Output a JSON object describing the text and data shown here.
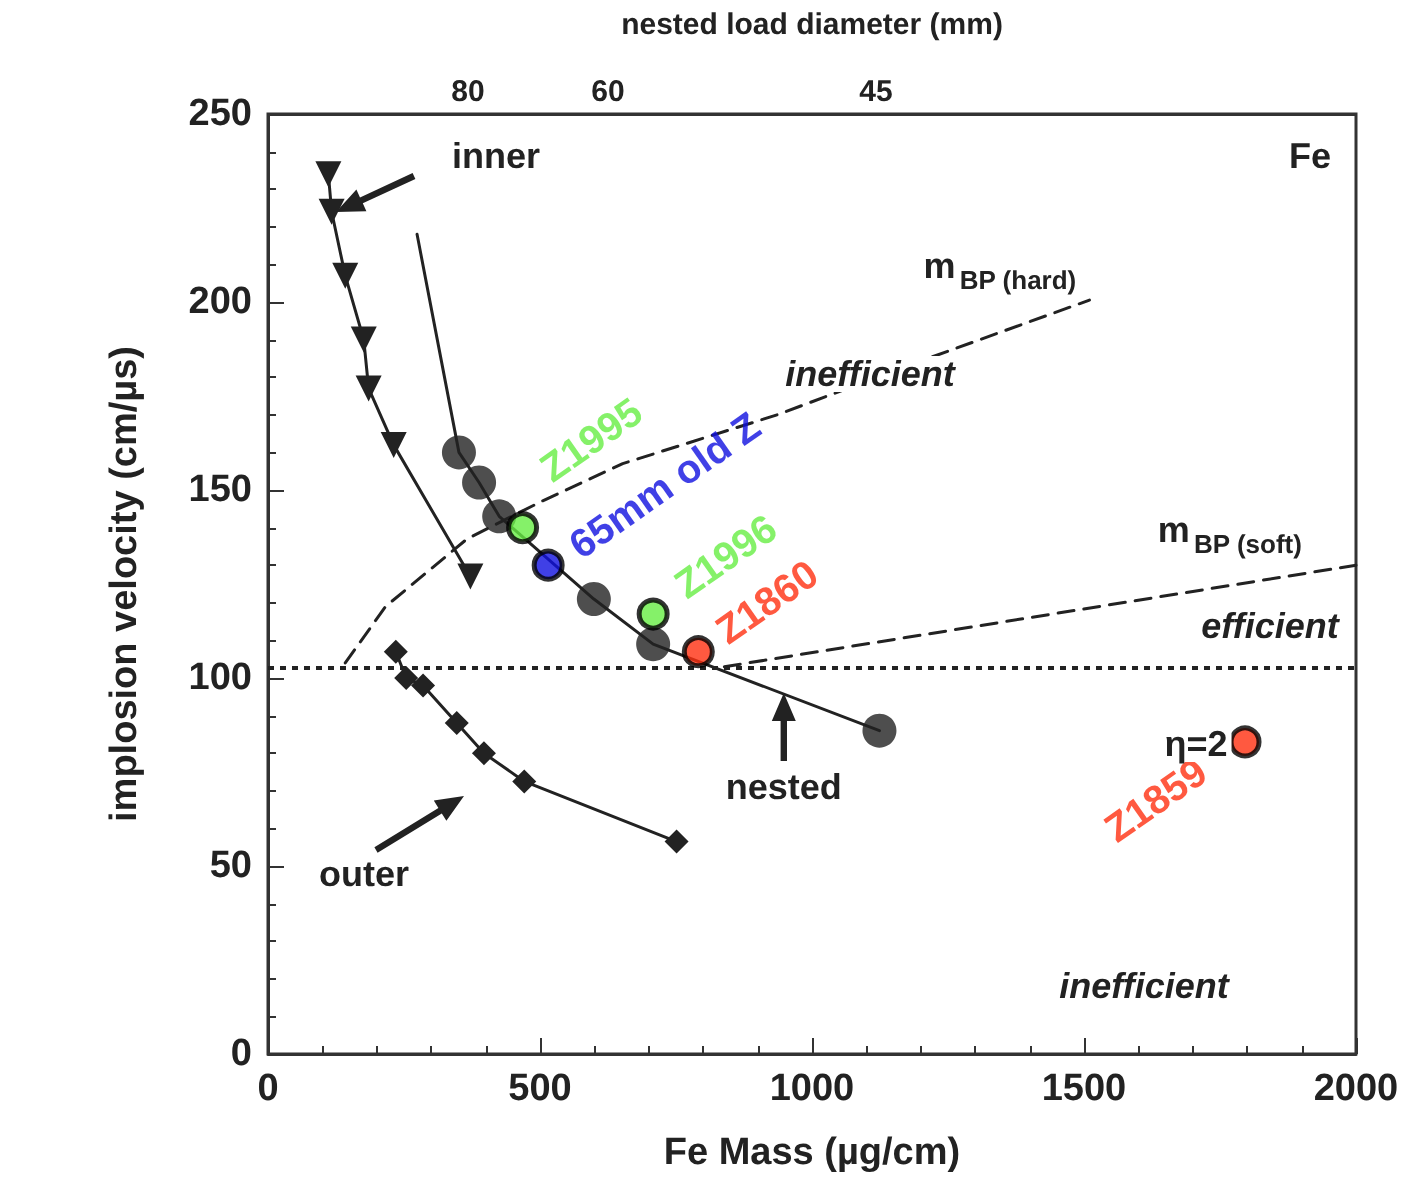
{
  "chart_data": {
    "type": "line",
    "xlabel": "Fe Mass (µg/cm)",
    "ylabel": "implosion velocity (cm/µs)",
    "x2label": "nested load diameter (mm)",
    "xlim": [
      0,
      2000
    ],
    "xticks": [
      0,
      500,
      1000,
      1500,
      2000
    ],
    "ylim": [
      0,
      250
    ],
    "yticks": [
      0,
      50,
      100,
      150,
      200,
      250
    ],
    "grid": false,
    "legend": false,
    "series": [
      {
        "color": "#222222",
        "marker": "triangle",
        "line_style": "solid",
        "x": [
          111,
          117,
          142,
          176,
          185,
          231,
          372
        ],
        "values": [
          234,
          224,
          207,
          190,
          177,
          162,
          127
        ]
      },
      {
        "color": "#222222",
        "marker": "diamond",
        "line_style": "solid",
        "x": [
          235,
          254,
          285,
          347,
          397,
          471,
          751
        ],
        "values": [
          107,
          100,
          98,
          88,
          80,
          72.5,
          56.5
        ]
      },
      {
        "color": "#222222",
        "marker": "none",
        "line_style": "solid",
        "x": [
          274,
          351,
          388,
          425,
          599,
          708,
          1124
        ],
        "values": [
          218,
          160,
          152,
          143,
          121,
          109,
          86
        ]
      },
      {
        "type": "scatter",
        "color": "#222222",
        "marker": "circle",
        "x": [
          351,
          388,
          425,
          599,
          708,
          1124
        ],
        "values": [
          160,
          152,
          143,
          121,
          109,
          86
        ]
      },
      {
        "color": "#222222",
        "marker": "none",
        "line_style": "dashed",
        "x": [
          142,
          216,
          366,
          503,
          652,
          936,
          1213,
          1510
        ],
        "values": [
          104,
          119,
          137,
          147,
          157,
          170,
          185,
          200.5
        ]
      },
      {
        "color": "#222222",
        "marker": "none",
        "line_style": "dashed",
        "x": [
          839,
          2000
        ],
        "values": [
          103,
          130
        ]
      },
      {
        "type": "scatter",
        "name": "Z1995",
        "color": "#66ee44",
        "marker": "circle",
        "x": [
          468
        ],
        "values": [
          140
        ]
      },
      {
        "type": "scatter",
        "name": "65mm old Z",
        "color": "#1010e0",
        "marker": "circle",
        "x": [
          515
        ],
        "values": [
          130
        ]
      },
      {
        "type": "scatter",
        "name": "Z1996",
        "color": "#66ee44",
        "marker": "circle",
        "x": [
          708
        ],
        "values": [
          117
        ]
      },
      {
        "type": "scatter",
        "name": "Z1860",
        "color": "#ff3010",
        "marker": "circle",
        "x": [
          791
        ],
        "values": [
          107
        ]
      },
      {
        "type": "scatter",
        "name": "Z1859",
        "color": "#ff3010",
        "marker": "circle",
        "x": [
          1796
        ],
        "values": [
          83
        ]
      }
    ],
    "ref_lines": [
      {
        "axis": "y",
        "value": 103,
        "label": null,
        "color": "#222222",
        "line_style": "dotted"
      }
    ],
    "annotations": [
      "inner",
      "outer",
      {
        "text": "nested",
        "x": 948,
        "y": 96
      },
      "Fe",
      "m$_{BP (hard)}$",
      "inefficient",
      "m$_{BP (soft)}$",
      "efficient",
      "η=2",
      "inefficient",
      "80",
      "60",
      "45"
    ]
  }
}
